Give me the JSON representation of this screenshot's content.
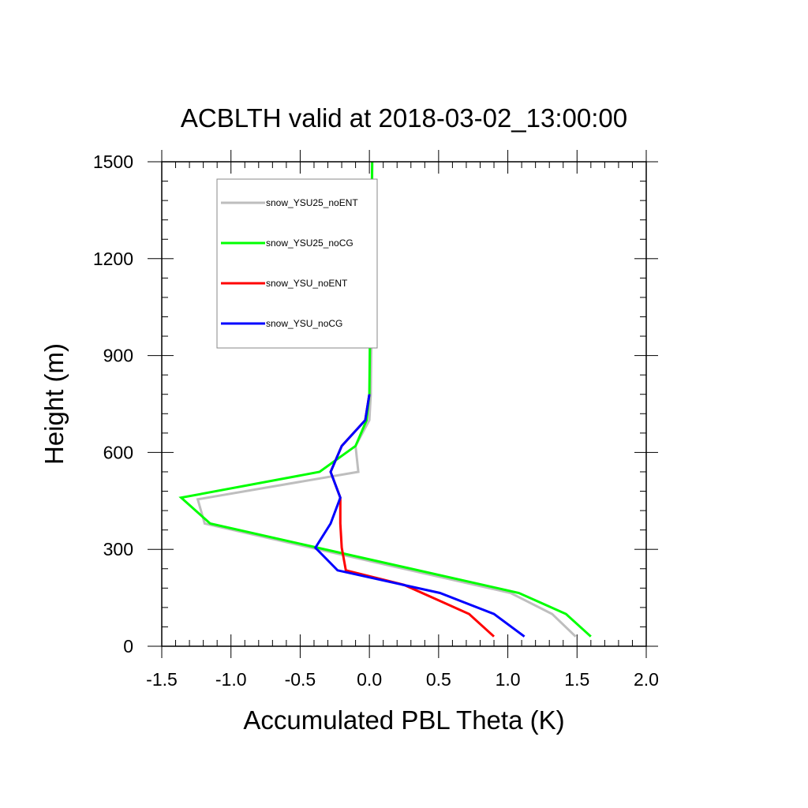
{
  "chart_data": {
    "type": "line",
    "title": "ACBLTH valid at 2018-03-02_13:00:00",
    "xlabel": "Accumulated PBL Theta (K)",
    "ylabel": "Height (m)",
    "xlim": [
      -1.5,
      2.0
    ],
    "ylim": [
      0,
      1500
    ],
    "xticks": [
      -1.5,
      -1.0,
      -0.5,
      0.0,
      0.5,
      1.0,
      1.5,
      2.0
    ],
    "xtick_labels": [
      "-1.5",
      "-1.0",
      "-0.5",
      "0.0",
      "0.5",
      "1.0",
      "1.5",
      "2.0"
    ],
    "yticks": [
      0,
      300,
      600,
      900,
      1200,
      1500
    ],
    "ytick_labels": [
      "0",
      "300",
      "600",
      "900",
      "1200",
      "1500"
    ],
    "grid": false,
    "legend_position": "top-left",
    "series": [
      {
        "name": "snow_YSU25_noENT",
        "color": "#bebebe",
        "x": [
          1.49,
          1.32,
          1.02,
          -1.19,
          -1.24,
          -0.08,
          -0.1,
          0.0,
          0.01,
          0.02,
          0.02
        ],
        "y": [
          30,
          100,
          165,
          380,
          455,
          540,
          620,
          700,
          780,
          1200,
          1500
        ]
      },
      {
        "name": "snow_YSU25_noCG",
        "color": "#00ff00",
        "x": [
          1.6,
          1.42,
          1.08,
          -1.15,
          -1.36,
          -0.36,
          -0.1,
          -0.02,
          0.0,
          0.01,
          0.02
        ],
        "y": [
          30,
          100,
          165,
          380,
          460,
          540,
          620,
          700,
          780,
          1200,
          1500
        ]
      },
      {
        "name": "snow_YSU_noENT",
        "color": "#ff0000",
        "x": [
          0.9,
          0.72,
          0.25,
          -0.17,
          -0.2,
          -0.21,
          -0.21,
          -0.28,
          -0.2,
          -0.03,
          0.0
        ],
        "y": [
          30,
          100,
          190,
          235,
          305,
          380,
          460,
          540,
          620,
          700,
          780
        ]
      },
      {
        "name": "snow_YSU_noCG",
        "color": "#0000ff",
        "x": [
          1.12,
          0.9,
          0.51,
          -0.23,
          -0.39,
          -0.28,
          -0.21,
          -0.28,
          -0.2,
          -0.03,
          0.0
        ],
        "y": [
          30,
          100,
          165,
          235,
          305,
          380,
          460,
          540,
          620,
          700,
          780
        ]
      }
    ]
  }
}
